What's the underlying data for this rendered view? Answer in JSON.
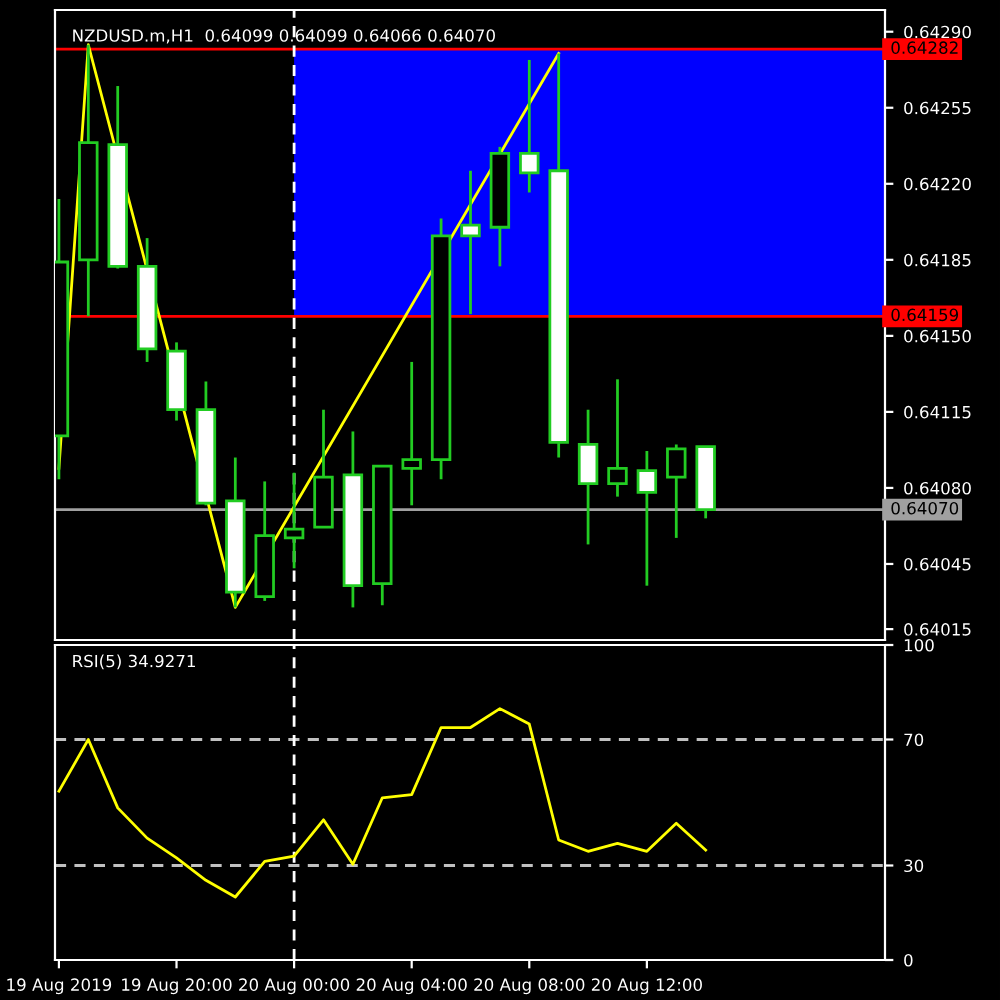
{
  "chart_data": [
    {
      "type": "candlestick",
      "title": "NZDUSD.m,H1  0.64099 0.64099 0.64066 0.64070",
      "x": [
        "2019-08-19T16:00",
        "2019-08-19T17:00",
        "2019-08-19T18:00",
        "2019-08-19T19:00",
        "2019-08-19T20:00",
        "2019-08-19T21:00",
        "2019-08-19T22:00",
        "2019-08-19T23:00",
        "2019-08-20T00:00",
        "2019-08-20T01:00",
        "2019-08-20T02:00",
        "2019-08-20T03:00",
        "2019-08-20T04:00",
        "2019-08-20T05:00",
        "2019-08-20T06:00",
        "2019-08-20T07:00",
        "2019-08-20T08:00",
        "2019-08-20T09:00",
        "2019-08-20T10:00",
        "2019-08-20T11:00",
        "2019-08-20T12:00",
        "2019-08-20T13:00",
        "2019-08-20T14:00"
      ],
      "ohlc": [
        [
          0.64104,
          0.64213,
          0.64084,
          0.64184
        ],
        [
          0.64185,
          0.64284,
          0.64159,
          0.64239
        ],
        [
          0.64238,
          0.64265,
          0.64181,
          0.64182
        ],
        [
          0.64182,
          0.64195,
          0.64138,
          0.64144
        ],
        [
          0.64143,
          0.64147,
          0.64111,
          0.64116
        ],
        [
          0.64116,
          0.64129,
          0.64072,
          0.64073
        ],
        [
          0.64074,
          0.64094,
          0.64025,
          0.64032
        ],
        [
          0.6403,
          0.64083,
          0.64028,
          0.64058
        ],
        [
          0.64057,
          0.64087,
          0.64043,
          0.64061
        ],
        [
          0.64062,
          0.64116,
          0.64062,
          0.64085
        ],
        [
          0.64086,
          0.64106,
          0.64025,
          0.64035
        ],
        [
          0.64036,
          0.6409,
          0.64026,
          0.6409
        ],
        [
          0.64089,
          0.64138,
          0.64072,
          0.64093
        ],
        [
          0.64093,
          0.64204,
          0.64084,
          0.64196
        ],
        [
          0.64201,
          0.64226,
          0.6416,
          0.64196
        ],
        [
          0.642,
          0.64237,
          0.64182,
          0.64234
        ],
        [
          0.64234,
          0.64277,
          0.64216,
          0.64225
        ],
        [
          0.64226,
          0.6428,
          0.64094,
          0.64101
        ],
        [
          0.641,
          0.64116,
          0.64054,
          0.64082
        ],
        [
          0.64082,
          0.6413,
          0.64076,
          0.64089
        ],
        [
          0.64088,
          0.64097,
          0.64035,
          0.64078
        ],
        [
          0.64085,
          0.641,
          0.64057,
          0.64098
        ],
        [
          0.64099,
          0.64099,
          0.64066,
          0.6407
        ]
      ],
      "color": "#22cc22",
      "colors": [
        "#000000",
        "#000000",
        "#ffffff",
        "#ffffff",
        "#ffffff",
        "#ffffff",
        "#ffffff",
        "#000000",
        "#000000",
        "#000000",
        "#ffffff",
        "#000000",
        "#000000",
        "#000000",
        "#ffffff",
        "#000000",
        "#ffffff",
        "#ffffff",
        "#ffffff",
        "#000000",
        "#ffffff",
        "#000000",
        "#ffffff"
      ],
      "series": [
        {
          "type": "line",
          "color": "#ffff00",
          "x": [
            "2019-08-19T16:00",
            "2019-08-19T17:00",
            "2019-08-19T22:00",
            "2019-08-20T09:00"
          ],
          "values": [
            0.64089,
            0.64284,
            0.64025,
            0.6428
          ]
        }
      ],
      "xlim": [
        "2019-08-19T15:52",
        "2019-08-20T20:06"
      ],
      "ylim": [
        0.6401,
        0.643
      ],
      "yticks": [
        {
          "value": 0.6429,
          "label": "0.64290"
        },
        {
          "value": 0.64255,
          "label": "0.64255"
        },
        {
          "value": 0.6422,
          "label": "0.64220"
        },
        {
          "value": 0.64185,
          "label": "0.64185"
        },
        {
          "value": 0.6415,
          "label": "0.64150"
        },
        {
          "value": 0.64115,
          "label": "0.64115"
        },
        {
          "value": 0.6408,
          "label": "0.64080"
        },
        {
          "value": 0.64045,
          "label": "0.64045"
        },
        {
          "value": 0.64015,
          "label": "0.64015"
        }
      ],
      "bands": [
        {
          "axis": "y",
          "from": 0.64159,
          "to": 0.64282,
          "color": "#0000ff"
        }
      ],
      "ref_lines": [
        {
          "axis": "y",
          "value": 0.64282,
          "label": "0.64282",
          "color": "#ff0000"
        },
        {
          "axis": "y",
          "value": 0.64159,
          "label": "0.64159",
          "color": "#ff0000"
        },
        {
          "axis": "y",
          "value": 0.6407,
          "label": "0.64070",
          "color": "#a0a0a0"
        },
        {
          "axis": "x",
          "value": "2019-08-20T00:00",
          "color": "#ffffff",
          "line_style": "dashed"
        }
      ],
      "tick_labels": "y",
      "grid": false,
      "legend": false
    },
    {
      "type": "line",
      "title": "RSI(5) 34.9271",
      "series": [
        {
          "color": "#ffff00",
          "x": [
            "2019-08-19T16:00",
            "2019-08-19T17:00",
            "2019-08-19T18:00",
            "2019-08-19T19:00",
            "2019-08-19T20:00",
            "2019-08-19T21:00",
            "2019-08-19T22:00",
            "2019-08-19T23:00",
            "2019-08-20T00:00",
            "2019-08-20T01:00",
            "2019-08-20T02:00",
            "2019-08-20T03:00",
            "2019-08-20T04:00",
            "2019-08-20T05:00",
            "2019-08-20T06:00",
            "2019-08-20T07:00",
            "2019-08-20T08:00",
            "2019-08-20T09:00",
            "2019-08-20T10:00",
            "2019-08-20T11:00",
            "2019-08-20T12:00",
            "2019-08-20T13:00",
            "2019-08-20T14:00"
          ],
          "values": [
            53.6,
            70,
            48.3,
            38.7,
            32.4,
            25.3,
            20.0,
            31.3,
            33.0,
            44.5,
            30.4,
            51.5,
            52.5,
            73.8,
            73.8,
            79.8,
            74.9,
            38.1,
            34.5,
            37.0,
            34.5,
            43.4,
            34.9
          ]
        }
      ],
      "xlim": [
        "2019-08-19T15:52",
        "2019-08-20T20:06"
      ],
      "xticks": [
        {
          "value": "2019-08-19T16:00",
          "label": "19 Aug 2019"
        },
        {
          "value": "2019-08-19T20:00",
          "label": "19 Aug 20:00"
        },
        {
          "value": "2019-08-20T00:00",
          "label": "20 Aug 00:00"
        },
        {
          "value": "2019-08-20T04:00",
          "label": "20 Aug 04:00"
        },
        {
          "value": "2019-08-20T08:00",
          "label": "20 Aug 08:00"
        },
        {
          "value": "2019-08-20T12:00",
          "label": "20 Aug 12:00"
        }
      ],
      "ylim": [
        0,
        100
      ],
      "yticks": [
        0,
        30,
        70,
        100
      ],
      "ref_lines": [
        {
          "axis": "y",
          "value": 70,
          "color": "#c0c0c0",
          "line_style": "dashed"
        },
        {
          "axis": "y",
          "value": 30,
          "color": "#c0c0c0",
          "line_style": "dashed"
        },
        {
          "axis": "x",
          "value": "2019-08-20T00:00",
          "color": "#ffffff",
          "line_style": "dashed"
        }
      ],
      "grid": false,
      "legend": false
    }
  ]
}
